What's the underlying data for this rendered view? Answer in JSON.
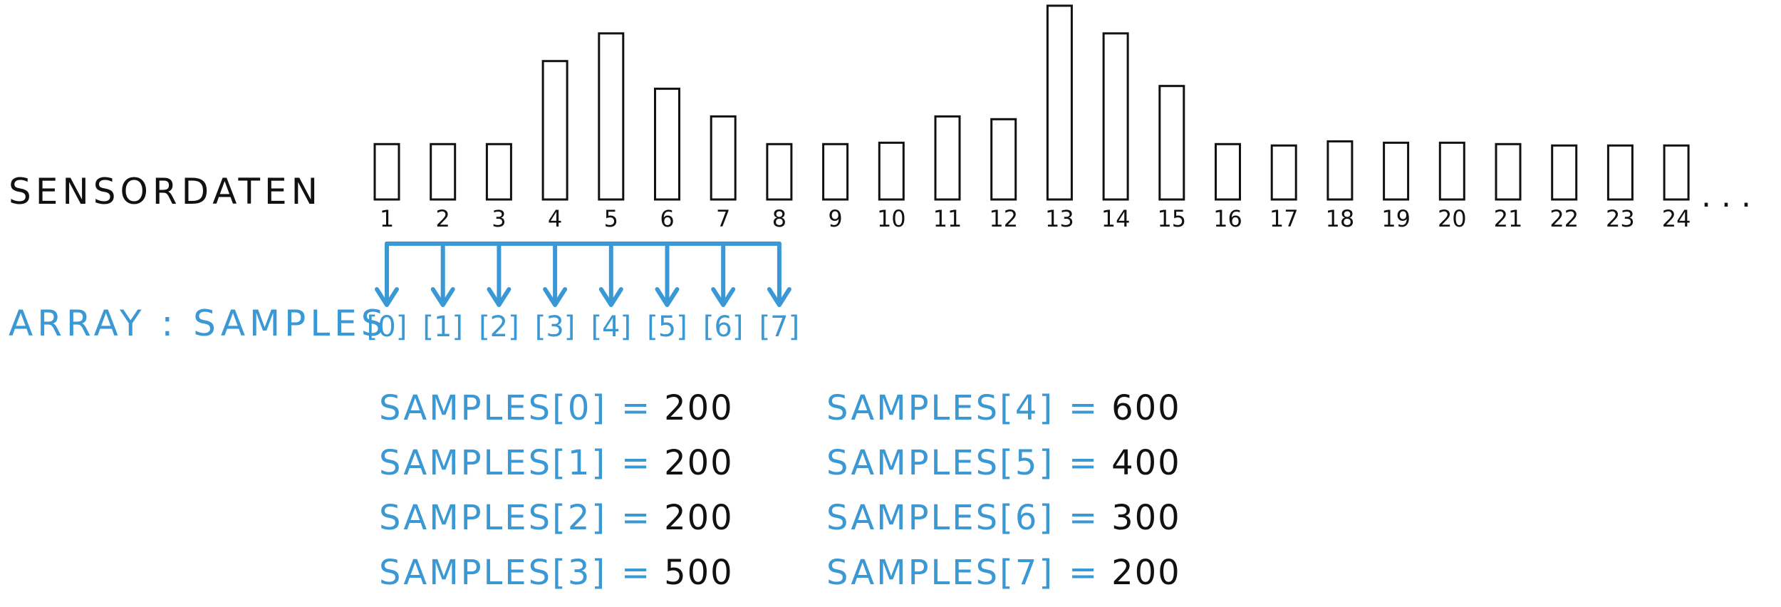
{
  "labels": {
    "sensor_row": "SENSORDATEN",
    "array_row": "ARRAY : SAMPLES"
  },
  "bar_heights": [
    200,
    200,
    200,
    500,
    600,
    400,
    300,
    200,
    200,
    205,
    300,
    290,
    700,
    600,
    410,
    200,
    195,
    210,
    205,
    205,
    200,
    195,
    195,
    195
  ],
  "bar_numbers": [
    "1",
    "2",
    "3",
    "4",
    "5",
    "6",
    "7",
    "8",
    "9",
    "10",
    "11",
    "12",
    "13",
    "14",
    "15",
    "16",
    "17",
    "18",
    "19",
    "20",
    "21",
    "22",
    "23",
    "24"
  ],
  "continuation": ". . .",
  "array_indices": [
    "[0]",
    "[1]",
    "[2]",
    "[3]",
    "[4]",
    "[5]",
    "[6]",
    "[7]"
  ],
  "assignments": [
    {
      "lhs": "SAMPLES[0]",
      "eq": "=",
      "val": "200"
    },
    {
      "lhs": "SAMPLES[1]",
      "eq": "=",
      "val": "200"
    },
    {
      "lhs": "SAMPLES[2]",
      "eq": "=",
      "val": "200"
    },
    {
      "lhs": "SAMPLES[3]",
      "eq": "=",
      "val": "500"
    },
    {
      "lhs": "SAMPLES[4]",
      "eq": "=",
      "val": "600"
    },
    {
      "lhs": "SAMPLES[5]",
      "eq": "=",
      "val": "400"
    },
    {
      "lhs": "SAMPLES[6]",
      "eq": "=",
      "val": "300"
    },
    {
      "lhs": "SAMPLES[7]",
      "eq": "=",
      "val": "200"
    }
  ],
  "colors": {
    "ink": "#111111",
    "accent": "#3a98d4"
  }
}
